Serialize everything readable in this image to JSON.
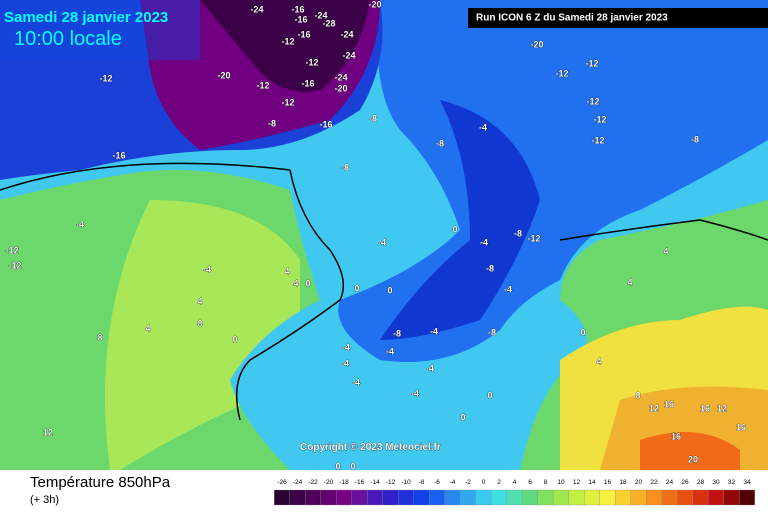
{
  "header": {
    "date": "Samedi 28 janvier 2023",
    "time": "10:00 locale",
    "run": "Run ICON 6 Z du Samedi 28 janvier 2023"
  },
  "map": {
    "copyright": "Copyright © 2023 Meteociel.fr",
    "labels": [
      -24,
      -16,
      -24,
      -20,
      -16,
      -28,
      -12,
      -16,
      -24,
      -24,
      -12,
      -16,
      -24,
      -20,
      -12,
      -12,
      -16,
      -8,
      -20,
      -12,
      -16,
      -8,
      -12,
      -12,
      -12,
      -12,
      -12,
      -8,
      -20,
      -4,
      -8,
      -8,
      -8,
      -12,
      -8,
      -4,
      -4,
      0,
      -4,
      -12,
      -12,
      -4,
      4,
      4,
      0,
      0,
      0,
      8,
      4,
      4,
      8,
      0,
      -8,
      -4,
      -8,
      -4,
      -4,
      -4,
      -4,
      -4,
      -4,
      0,
      0,
      4,
      8,
      12,
      16,
      16,
      12,
      16,
      16,
      20,
      12,
      0,
      0,
      -4,
      0,
      4,
      4
    ]
  },
  "legend": {
    "title": "Température 850hPa",
    "step": "(+ 3h)",
    "values": [
      -26,
      -24,
      -22,
      -20,
      -18,
      -16,
      -14,
      -12,
      -10,
      -8,
      -6,
      -4,
      -2,
      0,
      2,
      4,
      6,
      8,
      10,
      12,
      14,
      16,
      18,
      20,
      22,
      24,
      26,
      28,
      30,
      32,
      34
    ],
    "colors": [
      "#2a0030",
      "#3c0048",
      "#50005c",
      "#640070",
      "#780084",
      "#6a10a0",
      "#4a18b8",
      "#3020c8",
      "#2030d8",
      "#1040e8",
      "#1860f0",
      "#2888f0",
      "#30a8f0",
      "#38c8f0",
      "#40e0e0",
      "#50e0b0",
      "#60d880",
      "#80e060",
      "#a0e850",
      "#c0f040",
      "#e0f040",
      "#f8f040",
      "#f8d030",
      "#f8b028",
      "#f89020",
      "#f07018",
      "#e85010",
      "#d83010",
      "#c01010",
      "#900808",
      "#500000"
    ]
  }
}
